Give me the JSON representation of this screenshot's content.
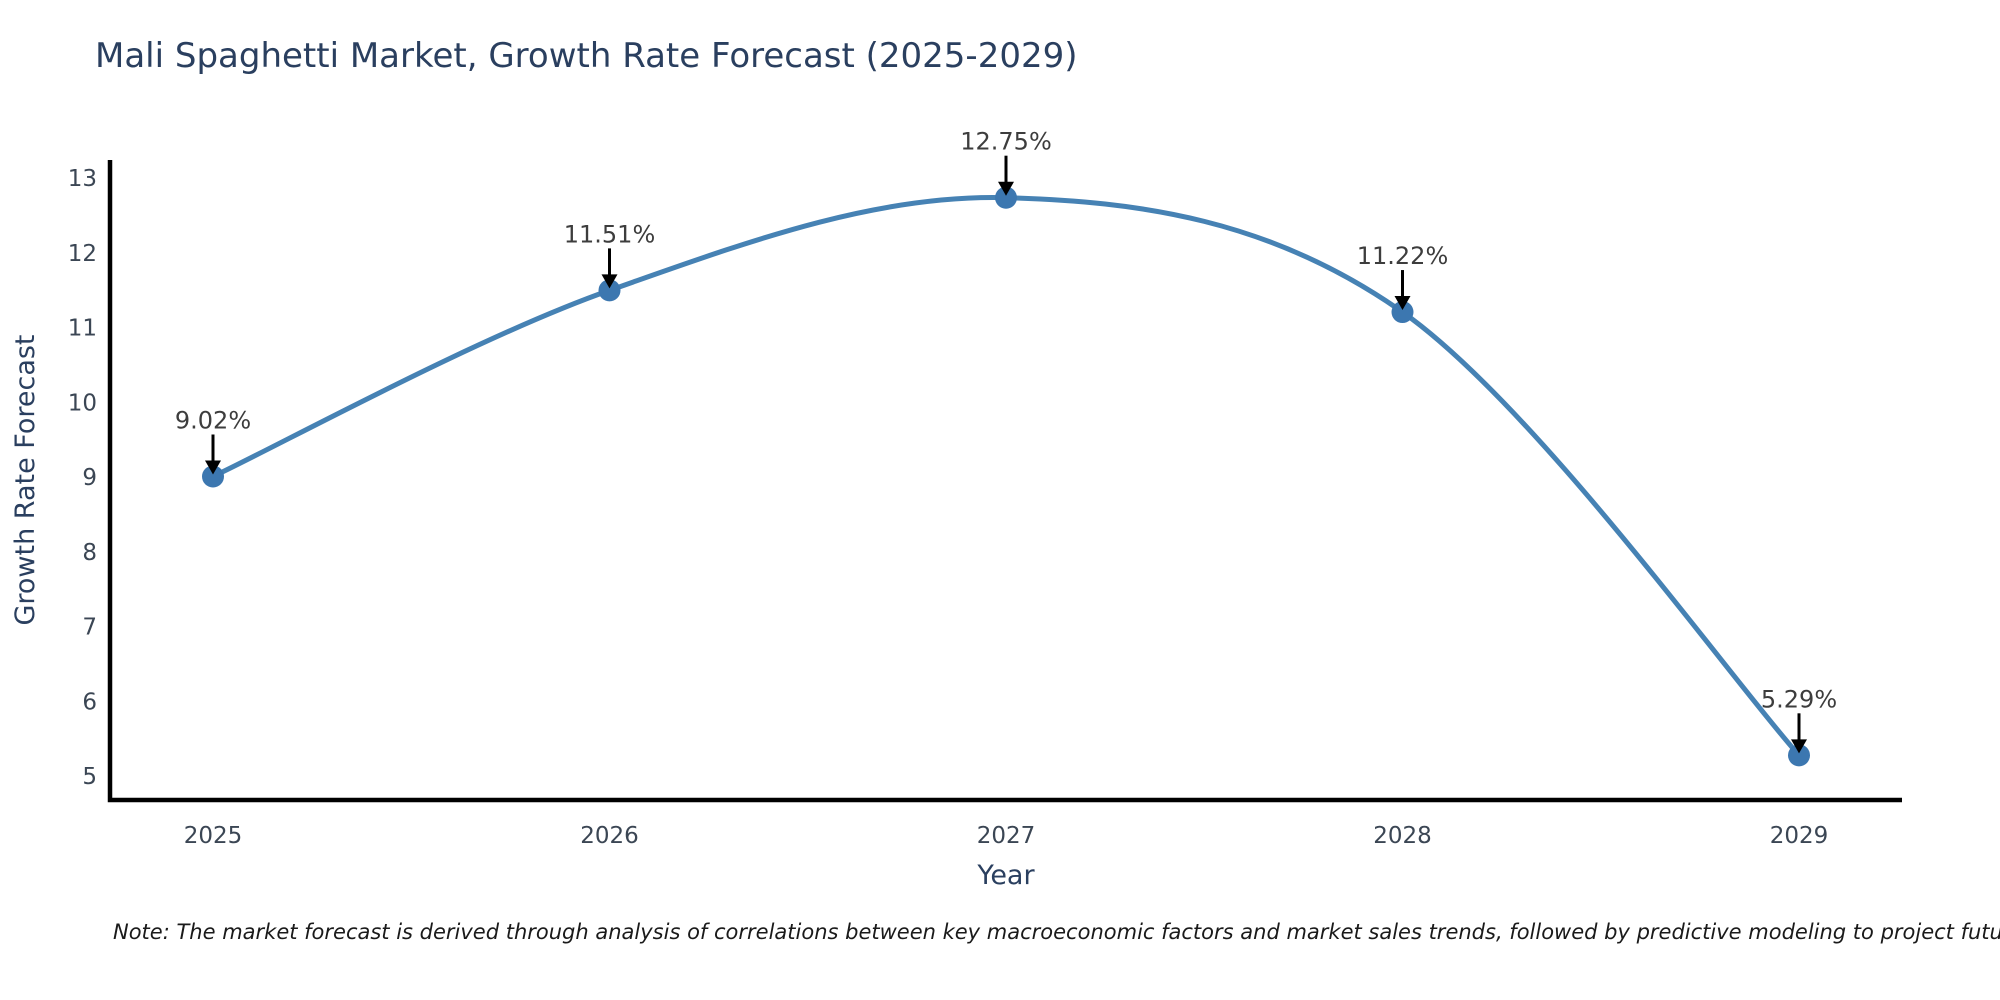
{
  "page": {
    "note": "Note: The market forecast is derived through analysis of correlations between key macroeconomic factors and market sales trends, followed by predictive modeling to project future sales"
  },
  "chart_data": {
    "type": "line",
    "title": "Mali Spaghetti Market, Growth Rate Forecast (2025-2029)",
    "xlabel": "Year",
    "ylabel": "Growth Rate Forecast",
    "x": [
      "2025",
      "2026",
      "2027",
      "2028",
      "2029"
    ],
    "values": [
      9.02,
      11.51,
      12.75,
      11.22,
      5.29
    ],
    "point_labels": [
      "9.02%",
      "11.51%",
      "12.75%",
      "11.22%",
      "5.29%"
    ],
    "ylim": [
      5,
      13
    ],
    "yticks": [
      5,
      6,
      7,
      8,
      9,
      10,
      11,
      12,
      13
    ],
    "grid": false,
    "legend": false,
    "smooth_spline": true,
    "colors": {
      "line": "#4682b4",
      "marker": "#3c77b0",
      "axis": "#000000",
      "arrow": "#000000",
      "title_text": "#2a3f5f",
      "axis_title_text": "#2a3f5f",
      "tick_text": "#3b4654",
      "annotation_text": "#3d3d3d"
    }
  }
}
